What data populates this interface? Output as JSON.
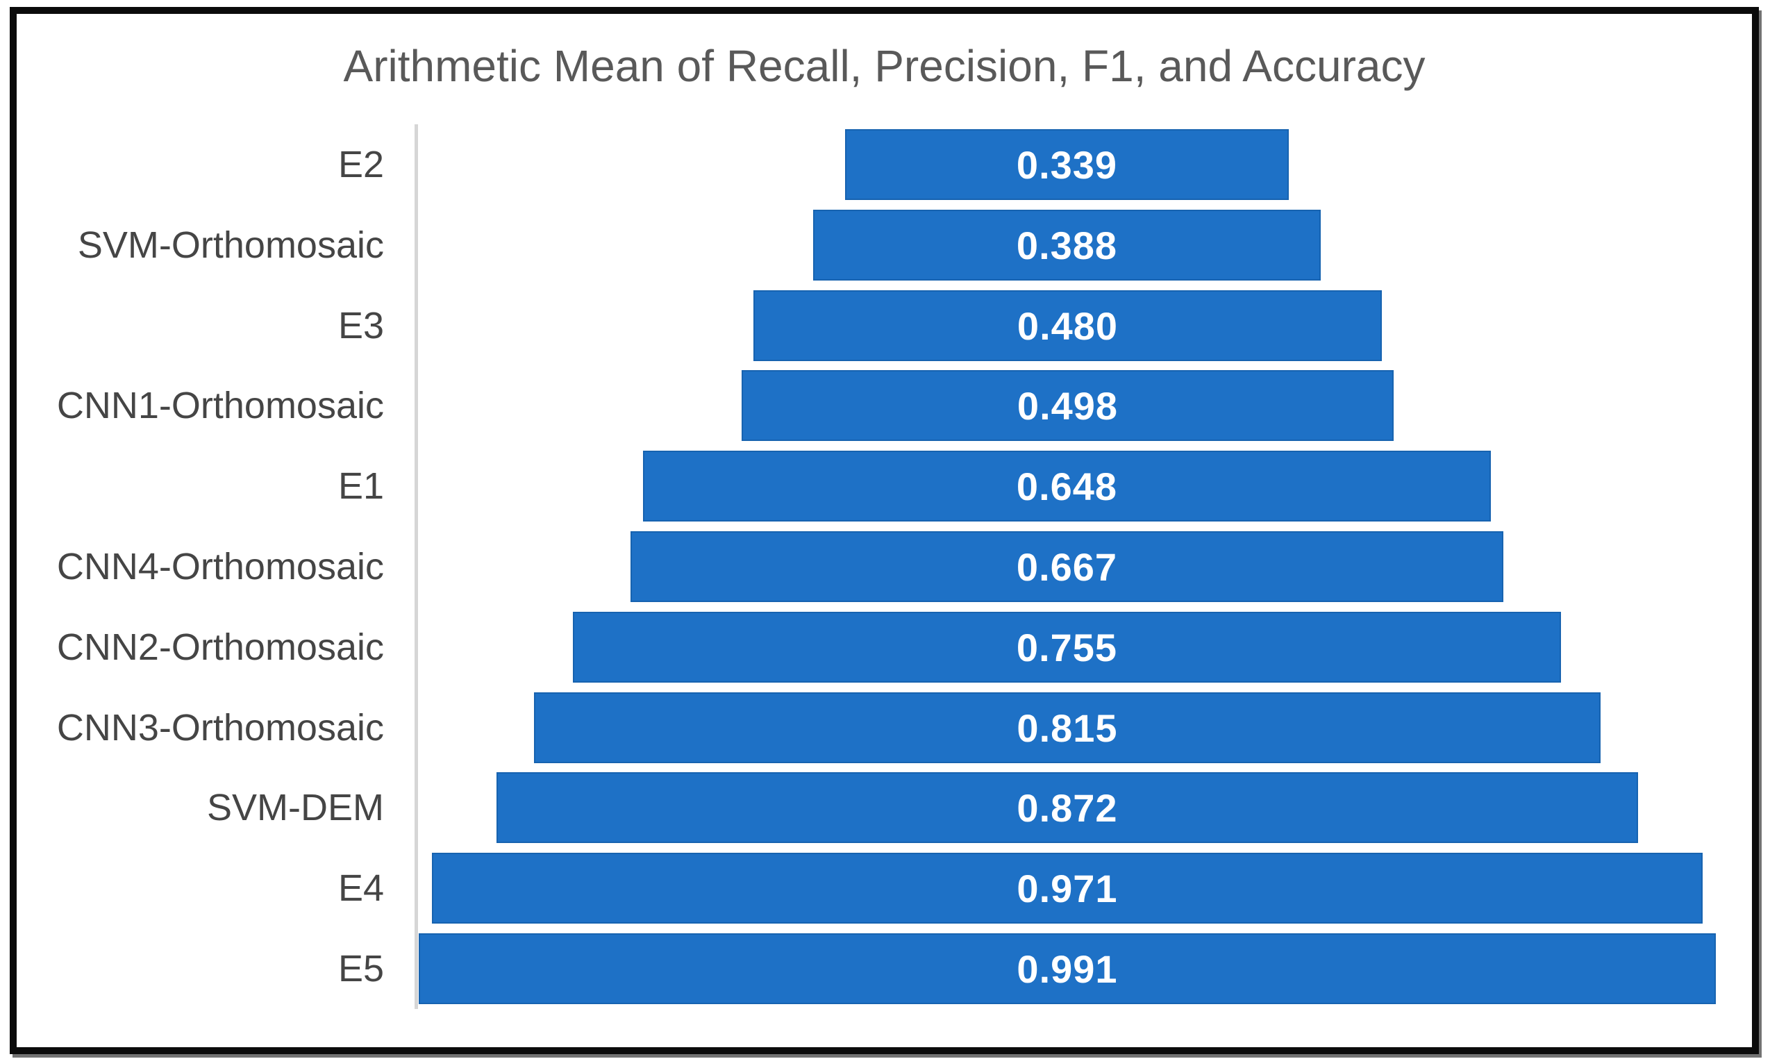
{
  "chart_data": {
    "type": "bar",
    "orientation": "horizontal",
    "bar_alignment": "centered-funnel",
    "title": "Arithmetic Mean of Recall, Precision, F1, and Accuracy",
    "categories": [
      "E2",
      "SVM-Orthomosaic",
      "E3",
      "CNN1-Orthomosaic",
      "E1",
      "CNN4-Orthomosaic",
      "CNN2-Orthomosaic",
      "CNN3-Orthomosaic",
      "SVM-DEM",
      "E4",
      "E5"
    ],
    "values": [
      0.339,
      0.388,
      0.48,
      0.498,
      0.648,
      0.667,
      0.755,
      0.815,
      0.872,
      0.971,
      0.991
    ],
    "value_labels": [
      "0.339",
      "0.388",
      "0.480",
      "0.498",
      "0.648",
      "0.667",
      "0.755",
      "0.815",
      "0.872",
      "0.971",
      "0.991"
    ],
    "xlim": [
      0,
      1.0
    ],
    "grid": false,
    "legend": false,
    "colors": {
      "bar_fill": "#1e71c6",
      "bar_edge": "#1763b0",
      "value_label": "#ffffff",
      "category_label": "#454545",
      "title": "#595959",
      "axis_line": "#d6d6d6",
      "frame_border": "#0b0b0b",
      "background": "#ffffff"
    }
  }
}
